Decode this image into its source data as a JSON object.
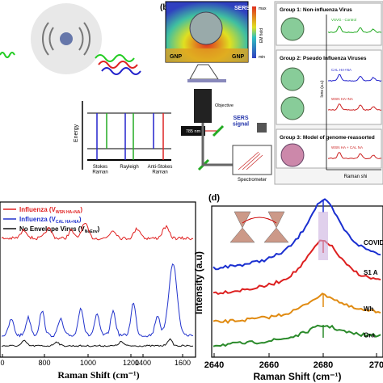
{
  "panel_a": {
    "energy_axis": "Energy",
    "labels": [
      "Stokes\nRaman",
      "Rayleigh",
      "Anti-Stokes\nRaman"
    ]
  },
  "panel_b": {
    "tag": "(b)",
    "sers": "SERS",
    "em_field": "EM field",
    "max": "max",
    "min": "min",
    "gnp_left": "GNP",
    "gnp_right": "GNP",
    "objective": "Objective",
    "laser": "785 nm",
    "signal": "SERS\nsignal",
    "spectrometer": "Spectrometer",
    "groups": [
      {
        "title": "Group 1: Non-influenza Virus",
        "items": [
          "VSVG - Control"
        ]
      },
      {
        "title": "Group 2: Pseudo  Influenza Viruses",
        "items": [
          "CAL HA+NA",
          "WSN HA+NA"
        ]
      },
      {
        "title": "Group 3: Model of genome-reassorted",
        "items": [
          "WSN HA + CAL NA"
        ]
      }
    ],
    "y_axis": "Ions (a.u)",
    "x_axis": "Raman shi"
  },
  "panel_c": {
    "legend": [
      {
        "prefix": "Influenza (V",
        "sub": "WSN HA+NA",
        "suffix": ")",
        "color": "#e02020"
      },
      {
        "prefix": "Influenza (V",
        "sub": "CAL HA+NA",
        "suffix": ")",
        "color": "#2233cc"
      },
      {
        "prefix": "No Envelope Virus (V",
        "sub": "NoEnv",
        "suffix": ")",
        "color": "#111111"
      }
    ],
    "xticks": [
      "0",
      "800",
      "1000",
      "1200",
      "1400",
      "1600"
    ],
    "x_label": "Raman Shift (cm⁻¹)"
  },
  "panel_d": {
    "tag": "(d)",
    "y_label": "Intensity (a.u)",
    "xticks": [
      "2640",
      "2660",
      "2680",
      "270"
    ],
    "x_label": "Raman Shift (cm⁻¹)",
    "curves": [
      "COVID",
      "S1 A",
      "Wh",
      "Gra"
    ]
  }
}
